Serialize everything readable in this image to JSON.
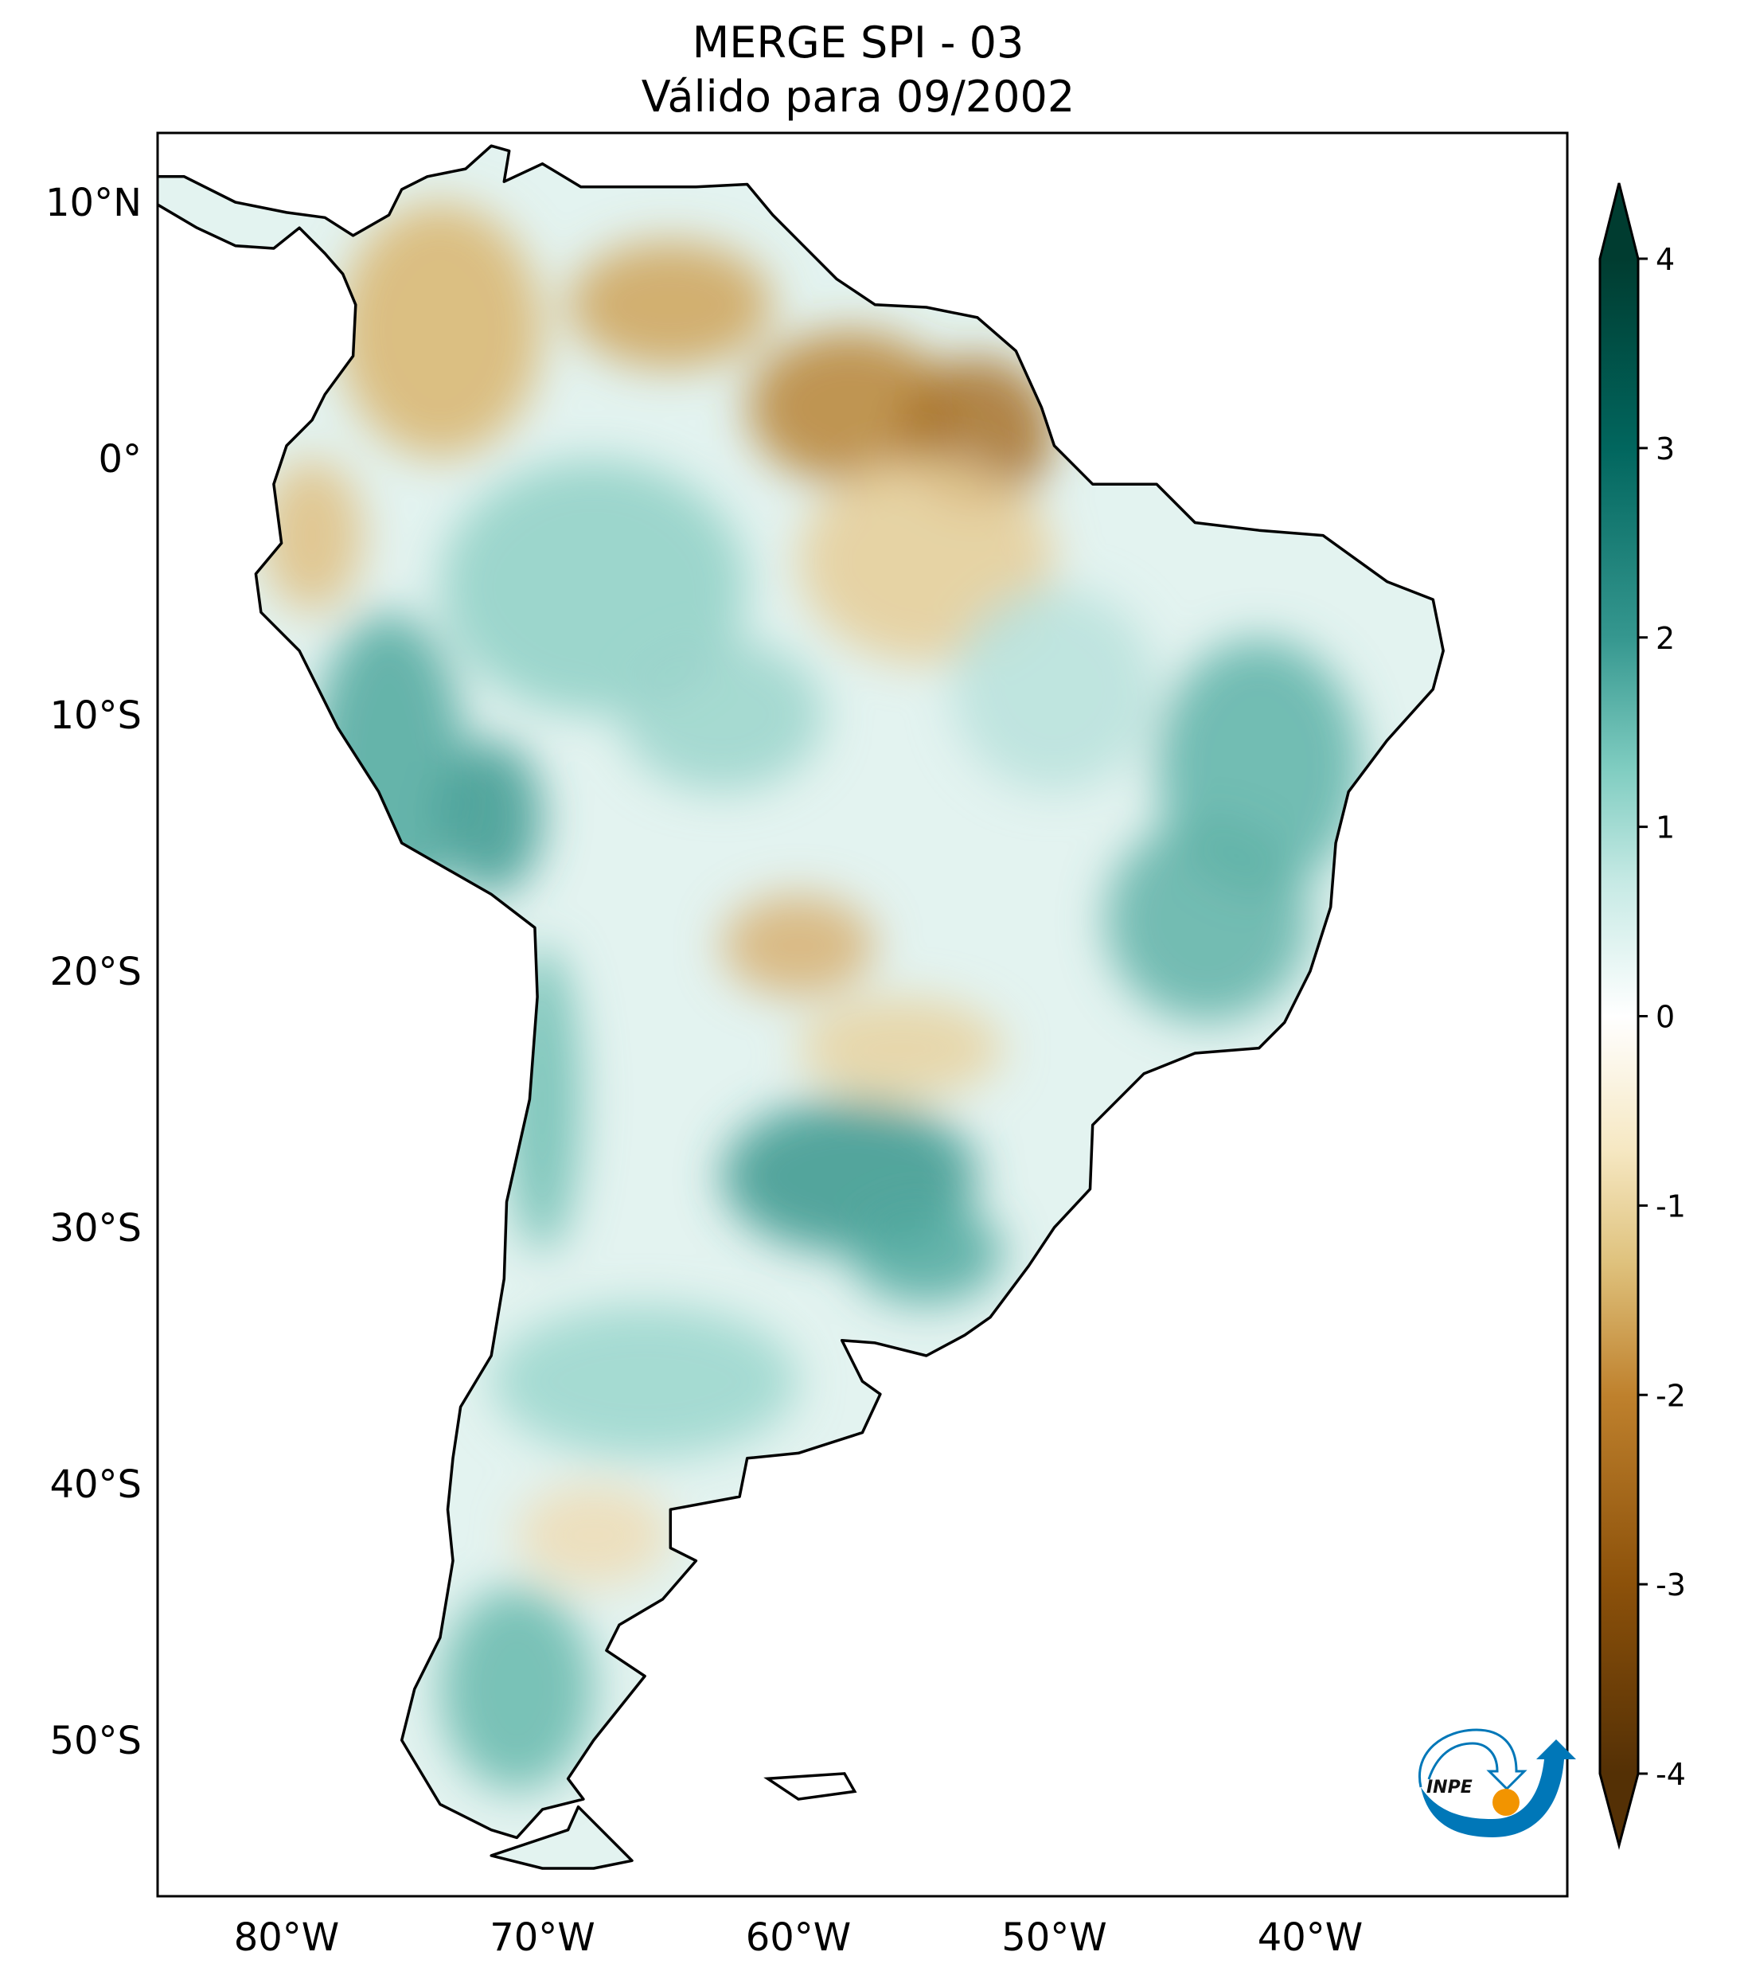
{
  "title": {
    "line1": "MERGE   SPI - 03",
    "line2": "Válido para 09/2002"
  },
  "map": {
    "type": "map",
    "lat_ticks": [
      {
        "value": 10,
        "label": "10°N"
      },
      {
        "value": 0,
        "label": "0°"
      },
      {
        "value": -10,
        "label": "10°S"
      },
      {
        "value": -20,
        "label": "20°S"
      },
      {
        "value": -30,
        "label": "30°S"
      },
      {
        "value": -40,
        "label": "40°S"
      },
      {
        "value": -50,
        "label": "50°S"
      }
    ],
    "lon_ticks": [
      {
        "value": -80,
        "label": "80°W"
      },
      {
        "value": -70,
        "label": "70°W"
      },
      {
        "value": -60,
        "label": "60°W"
      },
      {
        "value": -50,
        "label": "50°W"
      },
      {
        "value": -40,
        "label": "40°W"
      }
    ],
    "grid": false
  },
  "colorbar": {
    "colormap": "BrBG",
    "range": [
      -4,
      4
    ],
    "extend": "both",
    "ticks": [
      {
        "value": 4,
        "label": "4"
      },
      {
        "value": 3,
        "label": "3"
      },
      {
        "value": 2,
        "label": "2"
      },
      {
        "value": 1,
        "label": "1"
      },
      {
        "value": 0,
        "label": "0"
      },
      {
        "value": -1,
        "label": "-1"
      },
      {
        "value": -2,
        "label": "-2"
      },
      {
        "value": -3,
        "label": "-3"
      },
      {
        "value": -4,
        "label": "-4"
      }
    ],
    "colors": {
      "-4": "#543005",
      "-3": "#8c510a",
      "-2": "#bf812d",
      "-1.3": "#dfc27d",
      "-0.7": "#f6e8c3",
      "0": "#ffffff",
      "0.7": "#c7eae5",
      "1.3": "#80cdc1",
      "2": "#35978f",
      "3": "#01665e",
      "4": "#003c30"
    }
  },
  "logo": {
    "text": "INPE",
    "colors": {
      "blue": "#0077b8",
      "orange": "#f29400"
    }
  }
}
